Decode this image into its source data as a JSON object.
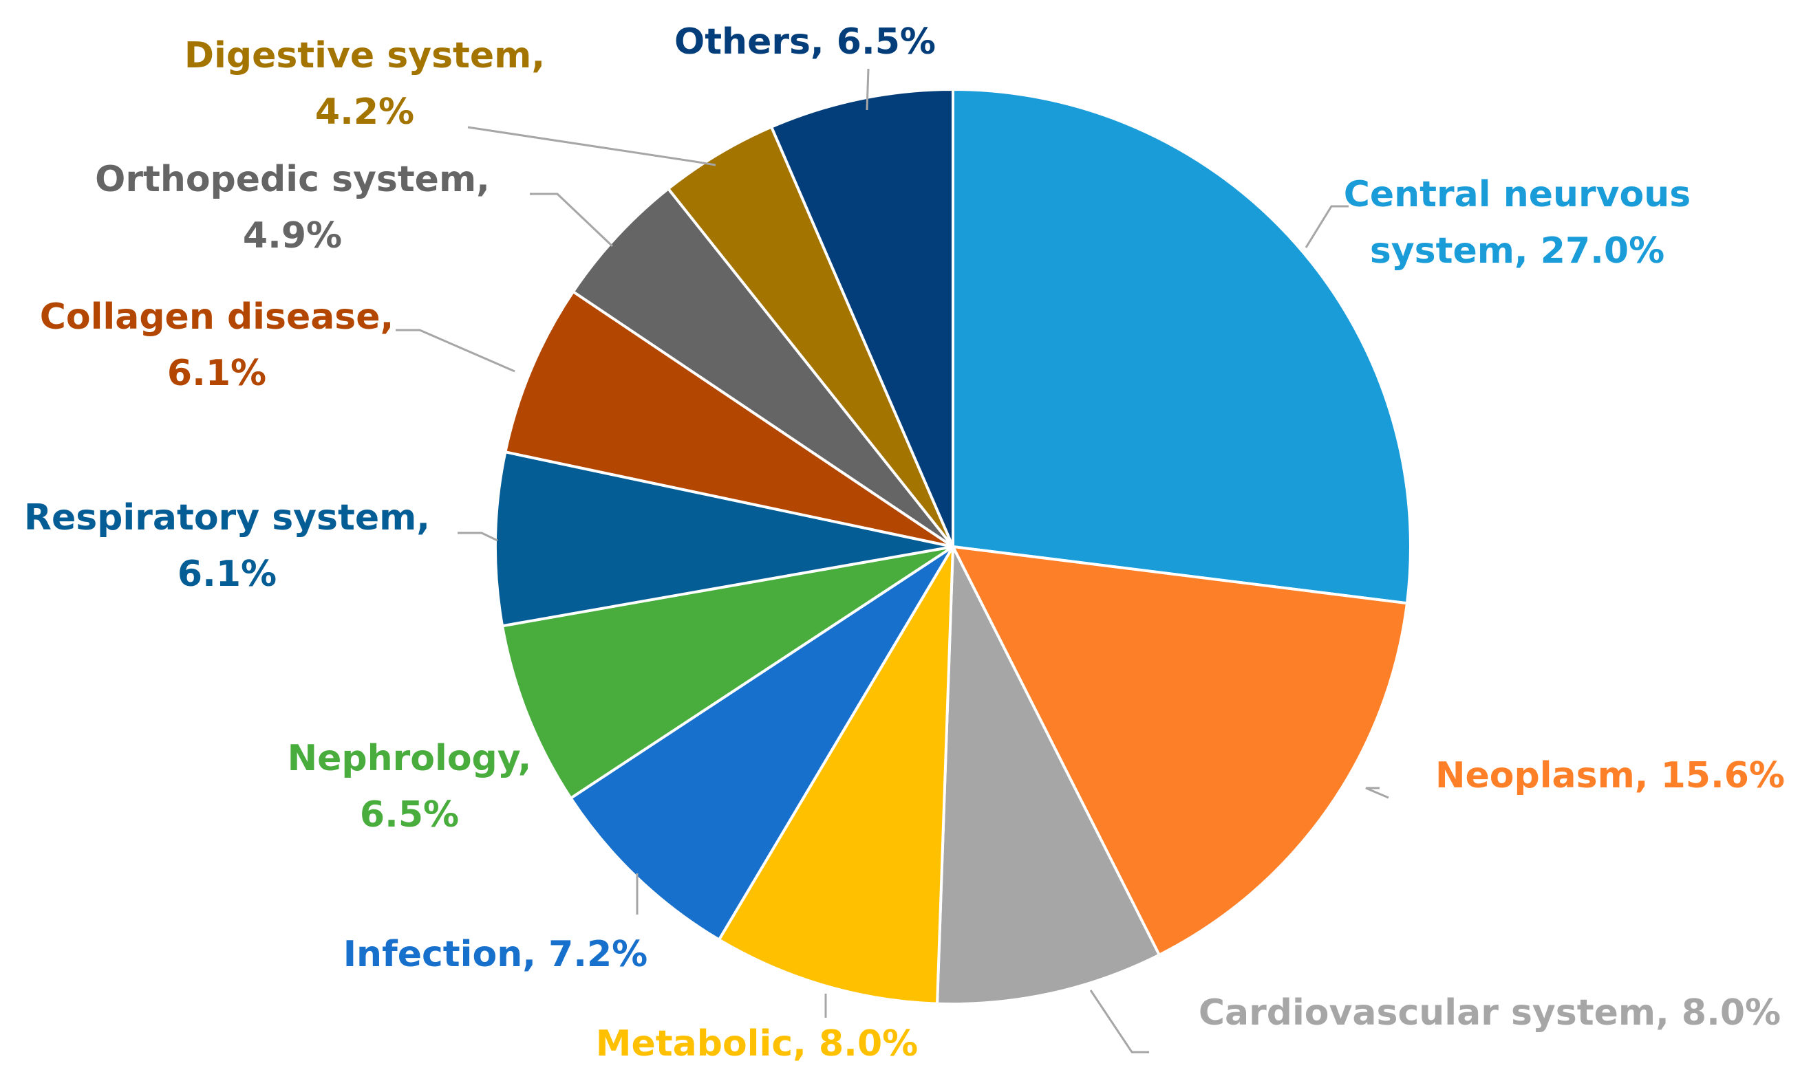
{
  "chart_data": {
    "type": "pie",
    "title": "",
    "start": "12 o'clock, clockwise",
    "slices": [
      {
        "label_lines": [
          "Central neurvous",
          "system, 27.0%"
        ],
        "name": "Central neurvous system",
        "value": 27.0,
        "color": "#1a9cd9"
      },
      {
        "label_lines": [
          "Neoplasm, 15.6%"
        ],
        "name": "Neoplasm",
        "value": 15.6,
        "color": "#fd7f28"
      },
      {
        "label_lines": [
          "Cardiovascular system, 8.0%"
        ],
        "name": "Cardiovascular system",
        "value": 8.0,
        "color": "#a6a6a6"
      },
      {
        "label_lines": [
          "Metabolic, 8.0%"
        ],
        "name": "Metabolic",
        "value": 8.0,
        "color": "#ffc000"
      },
      {
        "label_lines": [
          "Infection, 7.2%"
        ],
        "name": "Infection",
        "value": 7.2,
        "color": "#1770cb"
      },
      {
        "label_lines": [
          "Nephrology,",
          "6.5%"
        ],
        "name": "Nephrology",
        "value": 6.5,
        "color": "#48ad3c"
      },
      {
        "label_lines": [
          "Respiratory system,",
          "6.1%"
        ],
        "name": "Respiratory system",
        "value": 6.1,
        "color": "#055d95"
      },
      {
        "label_lines": [
          "Collagen disease,",
          "6.1%"
        ],
        "name": "Collagen disease",
        "value": 6.1,
        "color": "#b34601"
      },
      {
        "label_lines": [
          "Orthopedic system,",
          "4.9%"
        ],
        "name": "Orthopedic system",
        "value": 4.9,
        "color": "#656565"
      },
      {
        "label_lines": [
          "Digestive system,",
          "4.2%"
        ],
        "name": "Digestive system",
        "value": 4.2,
        "color": "#a37400"
      },
      {
        "label_lines": [
          "Others, 6.5%"
        ],
        "name": "Others",
        "value": 6.5,
        "color": "#043e7a"
      }
    ],
    "label_text_colors": [
      "#1a9cd9",
      "#fd7f28",
      "#a6a6a6",
      "#ffc000",
      "#1770cb",
      "#48ad3c",
      "#055d95",
      "#b34601",
      "#656565",
      "#a37400",
      "#043e7a"
    ],
    "leader_line_color": "#a6a6a6"
  }
}
